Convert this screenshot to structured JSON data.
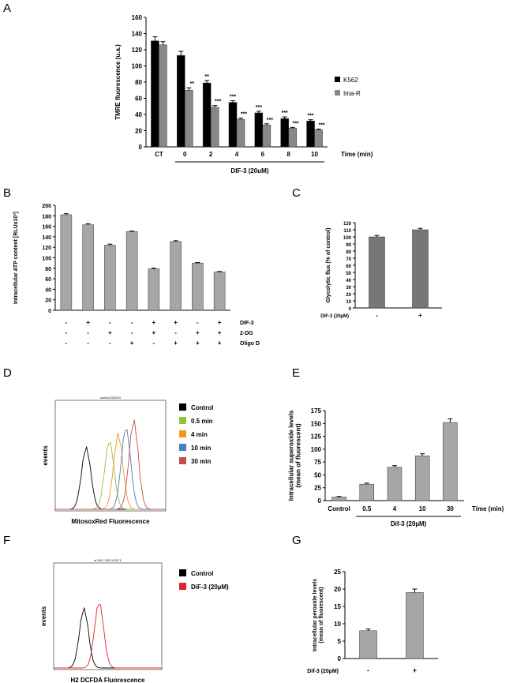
{
  "panels": {
    "A": "A",
    "B": "B",
    "C": "C",
    "D": "D",
    "E": "E",
    "F": "F",
    "G": "G"
  },
  "colors": {
    "black": "#000000",
    "gray": "#888888",
    "lightgray": "#a6a6a6",
    "darkgray": "#777777",
    "axis": "#000000"
  },
  "chart_data": [
    {
      "id": "A",
      "type": "bar",
      "ylabel": "TMRE fluorescence (u.a.)",
      "ylim": [
        0,
        160
      ],
      "yticks": [
        0,
        20,
        40,
        60,
        80,
        100,
        120,
        140,
        160
      ],
      "categories": [
        "CT",
        "0",
        "2",
        "4",
        "6",
        "8",
        "10"
      ],
      "series": [
        {
          "name": "K562",
          "values": [
            131,
            113,
            79,
            55,
            42,
            35,
            32
          ],
          "errors": [
            5,
            5,
            3,
            2,
            2,
            2,
            1.5
          ],
          "sig": [
            "",
            "",
            "**",
            "***",
            "***",
            "***",
            "***"
          ]
        },
        {
          "name": "Ima-R",
          "values": [
            126,
            70,
            49,
            34,
            27,
            23,
            21
          ],
          "errors": [
            4,
            3,
            2,
            1.5,
            1.5,
            1,
            1
          ],
          "sig": [
            "",
            "**",
            "***",
            "***",
            "***",
            "***",
            "***"
          ]
        }
      ],
      "xlabel_right": "Time (min)",
      "treatment_label": "DIF-3 (20uM)"
    },
    {
      "id": "B",
      "type": "bar",
      "ylabel": "Intracellular ATP content [RLUx10³]",
      "ylim": [
        0,
        200
      ],
      "yticks": [
        0,
        20,
        40,
        60,
        80,
        100,
        120,
        140,
        160,
        180,
        200
      ],
      "values": [
        182,
        163,
        124,
        150,
        79,
        131,
        90,
        73
      ],
      "errors": [
        2,
        2,
        2,
        1,
        1.5,
        1.5,
        1,
        1
      ],
      "rows": [
        {
          "label": "DIF-3",
          "signs": [
            "-",
            "+",
            "-",
            "-",
            "+",
            "+",
            "-",
            "+"
          ]
        },
        {
          "label": "2-DG",
          "signs": [
            "-",
            "-",
            "+",
            "-",
            "+",
            "-",
            "+",
            "+"
          ]
        },
        {
          "label": "Oligo D",
          "signs": [
            "-",
            "-",
            "-",
            "+",
            "-",
            "+",
            "+",
            "+"
          ]
        }
      ]
    },
    {
      "id": "C",
      "type": "bar",
      "ylabel": "Glycolytic flux (% of control)",
      "ylim": [
        0,
        120
      ],
      "yticks": [
        0,
        10,
        20,
        30,
        40,
        50,
        60,
        70,
        80,
        90,
        100,
        110,
        120
      ],
      "categories": [
        "-",
        "+"
      ],
      "values": [
        100,
        110
      ],
      "errors": [
        2,
        2
      ],
      "treatment_label": "DIF-3 (20µM)"
    },
    {
      "id": "D",
      "type": "histogram",
      "title": "control 081101",
      "ylabel": "events",
      "xlabel": "MitosoxRed Fluorescence",
      "legend": [
        {
          "name": "Control",
          "color": "#000000",
          "peak": 0.28
        },
        {
          "name": "0.5 min",
          "color": "#8cc63f",
          "peak": 0.49
        },
        {
          "name": "4 min",
          "color": "#f7941d",
          "peak": 0.57
        },
        {
          "name": "10 min",
          "color": "#4a7fc1",
          "peak": 0.64
        },
        {
          "name": "30 min",
          "color": "#c0504d",
          "peak": 0.71
        }
      ]
    },
    {
      "id": "E",
      "type": "bar",
      "ylabel": "Intracellular  superoxide levels\n(mean of fluorescent)",
      "ylim": [
        0,
        175
      ],
      "yticks": [
        0,
        25,
        50,
        75,
        100,
        125,
        150,
        175
      ],
      "categories": [
        "Control",
        "0.5",
        "4",
        "10",
        "30"
      ],
      "values": [
        7,
        32,
        65,
        87,
        152
      ],
      "errors": [
        1,
        2,
        3,
        4,
        7
      ],
      "xlabel_right": "Time (min)",
      "treatment_label": "Dif-3 (20µM)"
    },
    {
      "id": "F",
      "type": "histogram",
      "title": "sl.SAC 003 012971",
      "ylabel": "events",
      "xlabel": "H2 DCFDA Fluorescence",
      "legend": [
        {
          "name": "Control",
          "color": "#000000",
          "peak": 0.28
        },
        {
          "name": "DiF-3 (20µM)",
          "color": "#e0262a",
          "peak": 0.42
        }
      ]
    },
    {
      "id": "G",
      "type": "bar",
      "ylabel": "Intracellular peroxide levels\n(mean of fluorescent)",
      "ylim": [
        0,
        25
      ],
      "yticks": [
        0,
        5,
        10,
        15,
        20,
        25
      ],
      "categories": [
        "-",
        "+"
      ],
      "values": [
        8,
        19
      ],
      "errors": [
        0.5,
        1
      ],
      "treatment_label": "Dif-3 (20µM)"
    }
  ]
}
